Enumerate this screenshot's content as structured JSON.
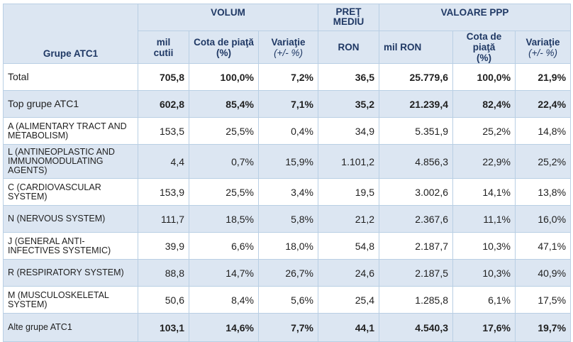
{
  "header": {
    "row_label": "Grupe ATC1",
    "groups": [
      {
        "label": "VOLUM"
      },
      {
        "label": "PREŢ MEDIU"
      },
      {
        "label": "VALOARE PPP"
      }
    ],
    "volum": {
      "unit": "mil cutii",
      "share": "Cota de piaţă",
      "share_unit": "(%)",
      "change": "Variaţie",
      "change_unit": "(+/- %)"
    },
    "pret": {
      "unit": "RON"
    },
    "valoare": {
      "unit": "mil RON",
      "share": "Cota de piaţă",
      "share_unit": "(%)",
      "change": "Variaţie",
      "change_unit": "(+/- %)"
    }
  },
  "rows": [
    {
      "name": "Total",
      "vol": "705,8",
      "vol_share": "100,0%",
      "vol_change": "7,2%",
      "price": "36,5",
      "val": "25.779,6",
      "val_share": "100,0%",
      "val_change": "21,9%"
    },
    {
      "name": "Top grupe ATC1",
      "vol": "602,8",
      "vol_share": "85,4%",
      "vol_change": "7,1%",
      "price": "35,2",
      "val": "21.239,4",
      "val_share": "82,4%",
      "val_change": "22,4%"
    },
    {
      "name": "A (ALIMENTARY TRACT AND METABOLISM)",
      "vol": "153,5",
      "vol_share": "25,5%",
      "vol_change": "0,4%",
      "price": "34,9",
      "val": "5.351,9",
      "val_share": "25,2%",
      "val_change": "14,8%"
    },
    {
      "name": "L (ANTINEOPLASTIC AND IMMUNOMODULATING AGENTS)",
      "vol": "4,4",
      "vol_share": "0,7%",
      "vol_change": "15,9%",
      "price": "1.101,2",
      "val": "4.856,3",
      "val_share": "22,9%",
      "val_change": "25,2%"
    },
    {
      "name": "C (CARDIOVASCULAR SYSTEM)",
      "vol": "153,9",
      "vol_share": "25,5%",
      "vol_change": "3,4%",
      "price": "19,5",
      "val": "3.002,6",
      "val_share": "14,1%",
      "val_change": "13,8%"
    },
    {
      "name": "N (NERVOUS SYSTEM)",
      "vol": "111,7",
      "vol_share": "18,5%",
      "vol_change": "5,8%",
      "price": "21,2",
      "val": "2.367,6",
      "val_share": "11,1%",
      "val_change": "16,0%"
    },
    {
      "name": "J (GENERAL ANTI-INFECTIVES SYSTEMIC)",
      "vol": "39,9",
      "vol_share": "6,6%",
      "vol_change": "18,0%",
      "price": "54,8",
      "val": "2.187,7",
      "val_share": "10,3%",
      "val_change": "47,1%"
    },
    {
      "name": "R (RESPIRATORY SYSTEM)",
      "vol": "88,8",
      "vol_share": "14,7%",
      "vol_change": "26,7%",
      "price": "24,6",
      "val": "2.187,5",
      "val_share": "10,3%",
      "val_change": "40,9%"
    },
    {
      "name": "M (MUSCULOSKELETAL SYSTEM)",
      "vol": "50,6",
      "vol_share": "8,4%",
      "vol_change": "5,6%",
      "price": "25,4",
      "val": "1.285,8",
      "val_share": "6,1%",
      "val_change": "17,5%"
    },
    {
      "name": "Alte grupe ATC1",
      "vol": "103,1",
      "vol_share": "14,6%",
      "vol_change": "7,7%",
      "price": "44,1",
      "val": "4.540,3",
      "val_share": "17,6%",
      "val_change": "19,7%"
    }
  ]
}
